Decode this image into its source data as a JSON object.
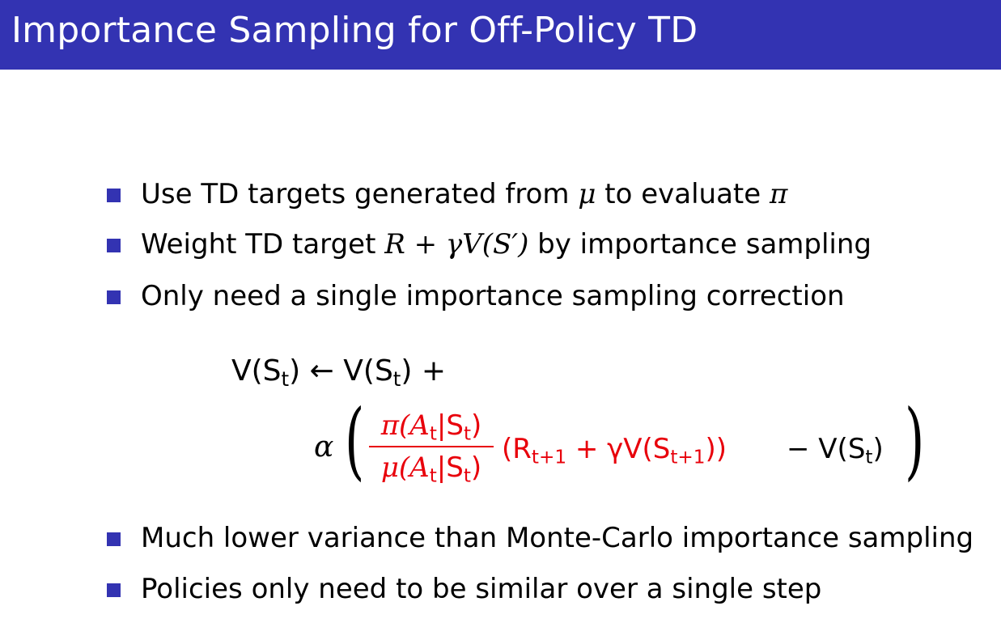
{
  "title": "Importance Sampling for Off-Policy TD",
  "colors": {
    "header_bg": "#3333b2",
    "highlight": "#e8000b"
  },
  "bullets_top": [
    {
      "text": "Use TD targets generated from",
      "mu": "μ",
      "mid": "to evaluate",
      "pi": "π"
    },
    {
      "pre": "Weight TD target",
      "math": "R + γV(S′)",
      "post": "by importance sampling"
    },
    {
      "text": "Only need a single importance sampling correction"
    }
  ],
  "formula": {
    "line1": {
      "lhs": "V(S",
      "sub": "t",
      "close": ")",
      "arrow": "←",
      "rhs": "V(S",
      "rhs_sub": "t",
      "rhs_close": ") +"
    },
    "alpha": "α",
    "frac_num": {
      "a": "π(A",
      "sub1": "t",
      "mid": "|S",
      "sub2": "t",
      "close": ")"
    },
    "frac_den": {
      "a": "μ(A",
      "sub1": "t",
      "mid": "|S",
      "sub2": "t",
      "close": ")"
    },
    "red_term": {
      "a": "(R",
      "sub1": "t+1",
      "mid": " + γV(S",
      "sub2": "t+1",
      "close": "))"
    },
    "tail": {
      "a": "− V(S",
      "sub": "t",
      "close": ")"
    }
  },
  "bullets_bottom": [
    "Much lower variance than Monte-Carlo importance sampling",
    "Policies only need to be similar over a single step"
  ]
}
